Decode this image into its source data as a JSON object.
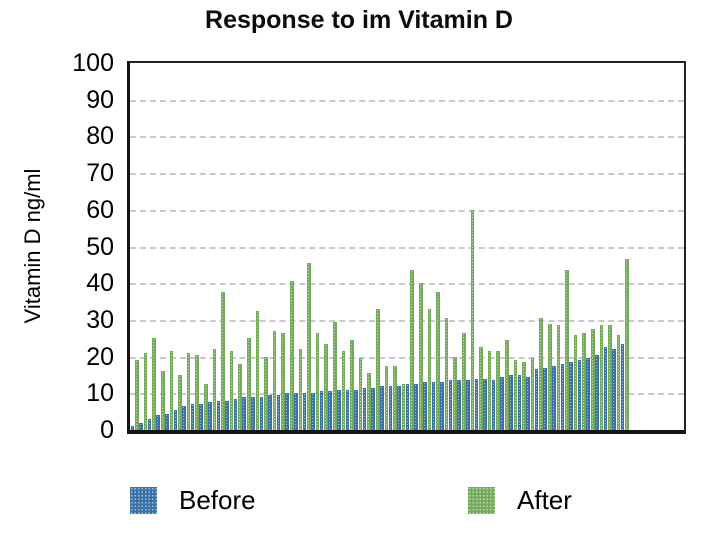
{
  "title": "Response to im Vitamin D",
  "y_axis": {
    "label": "Vitamin D ng/ml",
    "ticks": [
      0,
      10,
      20,
      30,
      40,
      50,
      60,
      70,
      80,
      90,
      100
    ],
    "min": 0,
    "max": 100
  },
  "legend": {
    "before_label": "Before",
    "after_label": "After",
    "before_color": "#3a72a8",
    "after_color": "#74aa5c"
  },
  "chart_data": {
    "type": "bar",
    "title": "Response to im Vitamin D",
    "xlabel": "",
    "ylabel": "Vitamin D ng/ml",
    "ylim": [
      0,
      100
    ],
    "grid": true,
    "legend_position": "bottom",
    "x_description": "58 patients, paired before/after bars, sorted by ascending baseline value",
    "series": [
      {
        "name": "Before",
        "color": "#3a72a8",
        "values": [
          1,
          2,
          3,
          4,
          4.5,
          5.5,
          6.5,
          7,
          7,
          7.5,
          8,
          8,
          8.5,
          9,
          9,
          9,
          9.5,
          9.5,
          10,
          10,
          10,
          10,
          10.5,
          10.5,
          11,
          11,
          11,
          11.5,
          11.5,
          12,
          12,
          12,
          12.5,
          12.5,
          13,
          13,
          13,
          13.5,
          13.5,
          13.5,
          14,
          14,
          13.5,
          14.5,
          15,
          15,
          14.5,
          16.5,
          17,
          17.5,
          18,
          18.5,
          19,
          19.5,
          20.5,
          22.5,
          22,
          23.5
        ]
      },
      {
        "name": "After",
        "color": "#74aa5c",
        "values": [
          19,
          21,
          25,
          16,
          21.5,
          15,
          21,
          20.5,
          12.5,
          22,
          37.5,
          21.5,
          18,
          25,
          32.5,
          20,
          27,
          26.5,
          40.5,
          22,
          45.5,
          26.5,
          23.5,
          29.5,
          21.5,
          24.5,
          19.5,
          15.5,
          33,
          17.5,
          17.5,
          12.5,
          43.5,
          40,
          33,
          37.5,
          30.5,
          20,
          26.5,
          60,
          22.5,
          21.5,
          21.5,
          24.5,
          19,
          18.5,
          19.5,
          30.5,
          29,
          28.5,
          43.5,
          26,
          26.5,
          27.5,
          28.5,
          28.5,
          26,
          46.5
        ]
      }
    ]
  }
}
